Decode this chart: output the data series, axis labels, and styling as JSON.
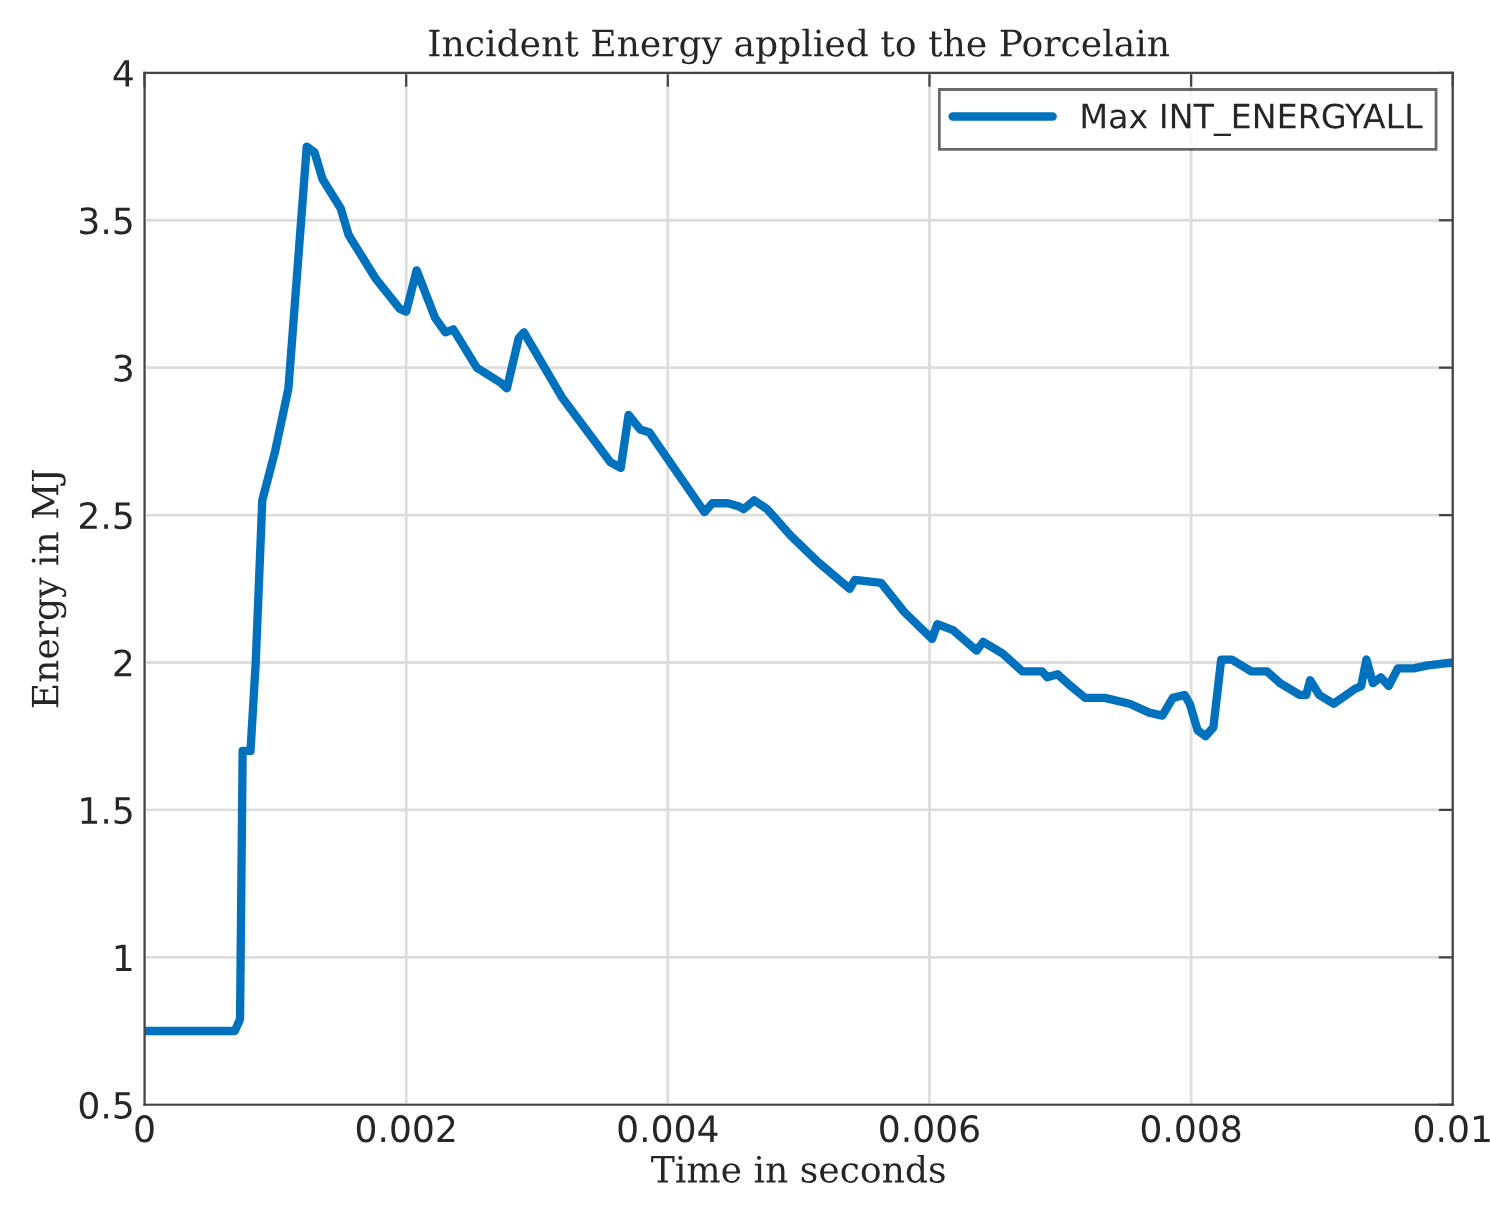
{
  "chart_data": {
    "type": "line",
    "title": "Incident Energy applied to the Porcelain",
    "xlabel": "Time in seconds",
    "ylabel": "Energy in MJ",
    "x": [
      0,
      0.00069,
      0.00073,
      0.00075,
      0.00081,
      0.00085,
      0.0009,
      0.001,
      0.0011,
      0.00124,
      0.0013,
      0.00136,
      0.0015,
      0.00156,
      0.00177,
      0.00195,
      0.002,
      0.00208,
      0.00222,
      0.0023,
      0.00236,
      0.00254,
      0.00272,
      0.00277,
      0.00286,
      0.0029,
      0.00319,
      0.00356,
      0.00364,
      0.0037,
      0.00379,
      0.00386,
      0.00428,
      0.00434,
      0.00446,
      0.00454,
      0.00458,
      0.00466,
      0.00476,
      0.00494,
      0.00515,
      0.00539,
      0.00543,
      0.00563,
      0.00581,
      0.00602,
      0.00606,
      0.00618,
      0.00636,
      0.00641,
      0.00656,
      0.00671,
      0.00686,
      0.0069,
      0.00698,
      0.00708,
      0.00719,
      0.00734,
      0.00753,
      0.00768,
      0.00778,
      0.00786,
      0.00795,
      0.00799,
      0.00805,
      0.00811,
      0.00817,
      0.00823,
      0.00831,
      0.00846,
      0.00858,
      0.00868,
      0.00883,
      0.00888,
      0.00891,
      0.00898,
      0.00909,
      0.00925,
      0.0093,
      0.00934,
      0.00939,
      0.00945,
      0.00951,
      0.00958,
      0.0097,
      0.00981,
      0.01
    ],
    "series": [
      {
        "name": "Max INT_ENERGYALL",
        "color": "#0072bd",
        "values": [
          0.75,
          0.75,
          0.79,
          1.7,
          1.7,
          2.0,
          2.55,
          2.72,
          2.93,
          3.75,
          3.73,
          3.64,
          3.54,
          3.45,
          3.3,
          3.2,
          3.19,
          3.33,
          3.17,
          3.12,
          3.13,
          3.0,
          2.95,
          2.93,
          3.1,
          3.12,
          2.9,
          2.68,
          2.66,
          2.84,
          2.79,
          2.78,
          2.51,
          2.54,
          2.54,
          2.53,
          2.52,
          2.55,
          2.52,
          2.43,
          2.34,
          2.25,
          2.28,
          2.27,
          2.17,
          2.08,
          2.13,
          2.11,
          2.04,
          2.07,
          2.03,
          1.97,
          1.97,
          1.95,
          1.96,
          1.92,
          1.88,
          1.88,
          1.86,
          1.83,
          1.82,
          1.88,
          1.89,
          1.86,
          1.77,
          1.75,
          1.78,
          2.01,
          2.01,
          1.97,
          1.97,
          1.93,
          1.89,
          1.89,
          1.94,
          1.89,
          1.86,
          1.91,
          1.92,
          2.01,
          1.93,
          1.95,
          1.92,
          1.98,
          1.98,
          1.99,
          2.0
        ]
      }
    ],
    "xlim": [
      0,
      0.01
    ],
    "xticks": [
      0,
      0.002,
      0.004,
      0.006,
      0.008,
      0.01
    ],
    "ylim": [
      0.5,
      4
    ],
    "yticks": [
      0.5,
      1,
      1.5,
      2,
      2.5,
      3,
      3.5,
      4
    ],
    "grid": true,
    "legend": "top right",
    "line_style": "solid",
    "marker": "none"
  }
}
